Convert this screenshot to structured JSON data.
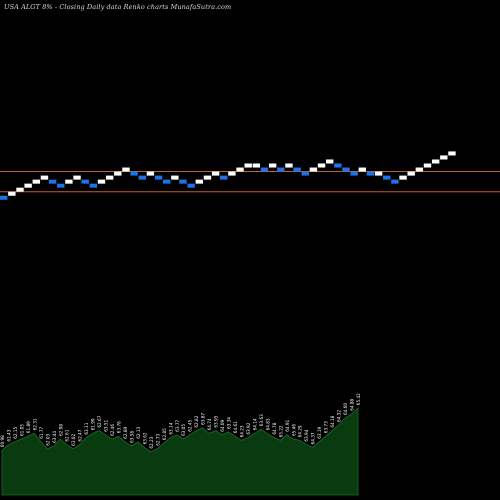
{
  "title": "USA ALGT 8% - Closing Daily data Renko charts MunafaSutra.com",
  "colors": {
    "background": "#000000",
    "up_brick": "#ffffff",
    "down_brick": "#1e73e8",
    "hline": "#c0602a",
    "volume_fill": "#0a3a10",
    "volume_stroke": "#1f6b2a",
    "label": "#ffffff"
  },
  "chart_data": {
    "type": "renko",
    "bricks": [
      {
        "v": 62.48,
        "d": "down"
      },
      {
        "v": 62.79,
        "d": "up"
      },
      {
        "v": 63.1,
        "d": "up"
      },
      {
        "v": 63.41,
        "d": "up"
      },
      {
        "v": 63.72,
        "d": "up"
      },
      {
        "v": 64.03,
        "d": "up"
      },
      {
        "v": 63.72,
        "d": "down"
      },
      {
        "v": 63.41,
        "d": "down"
      },
      {
        "v": 63.72,
        "d": "up"
      },
      {
        "v": 64.03,
        "d": "up"
      },
      {
        "v": 63.72,
        "d": "down"
      },
      {
        "v": 63.41,
        "d": "down"
      },
      {
        "v": 63.72,
        "d": "up"
      },
      {
        "v": 64.03,
        "d": "up"
      },
      {
        "v": 64.34,
        "d": "up"
      },
      {
        "v": 64.65,
        "d": "up"
      },
      {
        "v": 64.34,
        "d": "down"
      },
      {
        "v": 64.03,
        "d": "down"
      },
      {
        "v": 64.34,
        "d": "up"
      },
      {
        "v": 64.03,
        "d": "down"
      },
      {
        "v": 63.72,
        "d": "down"
      },
      {
        "v": 64.03,
        "d": "up"
      },
      {
        "v": 63.72,
        "d": "down"
      },
      {
        "v": 63.41,
        "d": "down"
      },
      {
        "v": 63.72,
        "d": "up"
      },
      {
        "v": 64.03,
        "d": "up"
      },
      {
        "v": 64.34,
        "d": "up"
      },
      {
        "v": 64.03,
        "d": "down"
      },
      {
        "v": 64.34,
        "d": "up"
      },
      {
        "v": 64.65,
        "d": "up"
      },
      {
        "v": 64.96,
        "d": "up"
      },
      {
        "v": 64.96,
        "d": "up"
      },
      {
        "v": 64.65,
        "d": "down"
      },
      {
        "v": 64.96,
        "d": "up"
      },
      {
        "v": 64.65,
        "d": "down"
      },
      {
        "v": 64.96,
        "d": "up"
      },
      {
        "v": 64.65,
        "d": "down"
      },
      {
        "v": 64.34,
        "d": "down"
      },
      {
        "v": 64.65,
        "d": "up"
      },
      {
        "v": 64.96,
        "d": "up"
      },
      {
        "v": 65.27,
        "d": "up"
      },
      {
        "v": 64.96,
        "d": "down"
      },
      {
        "v": 64.65,
        "d": "down"
      },
      {
        "v": 64.34,
        "d": "down"
      },
      {
        "v": 64.65,
        "d": "up"
      },
      {
        "v": 64.34,
        "d": "down"
      },
      {
        "v": 64.34,
        "d": "up"
      },
      {
        "v": 64.03,
        "d": "down"
      },
      {
        "v": 63.72,
        "d": "down"
      },
      {
        "v": 64.03,
        "d": "up"
      },
      {
        "v": 64.34,
        "d": "up"
      },
      {
        "v": 64.65,
        "d": "up"
      },
      {
        "v": 64.96,
        "d": "up"
      },
      {
        "v": 65.27,
        "d": "up"
      },
      {
        "v": 65.58,
        "d": "up"
      },
      {
        "v": 65.89,
        "d": "up"
      }
    ],
    "y_scale": {
      "top": 70.0,
      "bottom": 50.0
    },
    "hlines": [
      64.5,
      62.94
    ],
    "volume": [
      32,
      36,
      38,
      40,
      42,
      44,
      38,
      33,
      35,
      40,
      36,
      33,
      36,
      41,
      44,
      46,
      43,
      40,
      42,
      38,
      35,
      38,
      34,
      31,
      33,
      37,
      41,
      43,
      40,
      43,
      46,
      48,
      44,
      46,
      43,
      45,
      42,
      39,
      41,
      44,
      47,
      44,
      41,
      39,
      43,
      40,
      39,
      36,
      34,
      38,
      42,
      46,
      50,
      55,
      58,
      62
    ],
    "volume_labels": [
      "60.98",
      "61.43",
      "62.15",
      "61.05",
      "61.89",
      "62.31",
      "61.77",
      "62.03",
      "63.44",
      "62.98",
      "62.61",
      "63.02",
      "62.47",
      "63.11",
      "61.99",
      "62.67",
      "63.51",
      "62.46",
      "63.78",
      "62.89",
      "63.58",
      "62.13",
      "63.62",
      "62.23",
      "62.73",
      "62.85",
      "63.14",
      "63.77",
      "63.05",
      "62.45",
      "62.82",
      "63.87",
      "64.74",
      "63.95",
      "64.09",
      "63.34",
      "64.61",
      "64.23",
      "63.92",
      "64.14",
      "63.63",
      "64.83",
      "64.78",
      "65.22",
      "64.91",
      "65.46",
      "64.29",
      "63.94",
      "64.37",
      "63.19",
      "63.73",
      "64.18",
      "64.32",
      "64.60",
      "64.88",
      "65.42"
    ]
  }
}
